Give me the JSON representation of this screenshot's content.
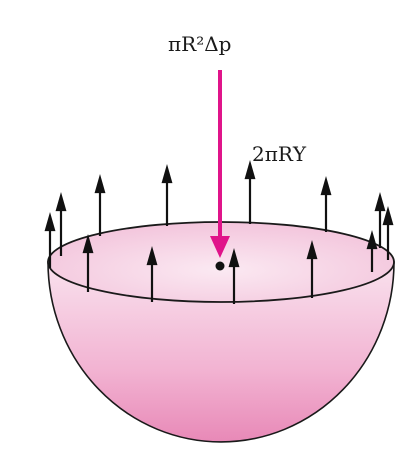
{
  "diagram": {
    "pressure_force_label": "πR²Δp",
    "surface_tension_label": "2πRΥ",
    "colors": {
      "bowl_fill_light": "#f7d6e6",
      "bowl_fill_dark": "#e98fbb",
      "bowl_outline": "#1a1a1a",
      "pressure_arrow": "#e0148a",
      "tension_arrows": "#111111",
      "center_dot": "#111111"
    }
  }
}
